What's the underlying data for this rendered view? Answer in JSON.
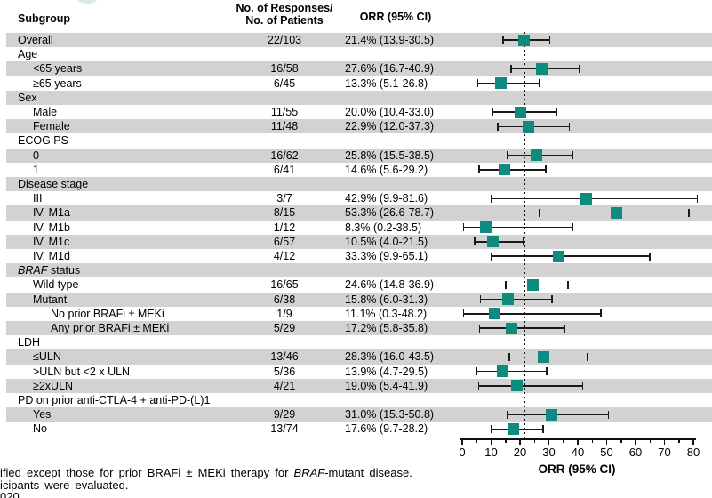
{
  "header": {
    "subgroup": "Subgroup",
    "responses_line1": "No. of Responses/",
    "responses_line2": "No. of Patients",
    "orr": "ORR (95% CI)"
  },
  "colors": {
    "marker": "#0f8a7f",
    "band": "#d2d2d2",
    "line": "#1a1a1a"
  },
  "chart_data": {
    "type": "scatter",
    "subtype": "forest-plot",
    "title": "",
    "xlabel": "ORR (95% CI)",
    "xlim": [
      0,
      80
    ],
    "x_major_ticks": [
      0,
      10,
      20,
      30,
      40,
      50,
      60,
      70,
      80
    ],
    "x_minor_step": 5,
    "reference_line_x": 21.4,
    "rows": [
      {
        "label": "Overall",
        "indent": 0,
        "shaded": true,
        "responses": "22/103",
        "orr": "21.4% (13.9-30.5)",
        "est": 21.4,
        "lo": 13.9,
        "hi": 30.5
      },
      {
        "label": "Age",
        "indent": 0,
        "shaded": false,
        "responses": "",
        "orr": ""
      },
      {
        "label": "<65 years",
        "indent": 1,
        "shaded": true,
        "responses": "16/58",
        "orr": "27.6% (16.7-40.9)",
        "est": 27.6,
        "lo": 16.7,
        "hi": 40.9
      },
      {
        "label": "≥65 years",
        "indent": 1,
        "shaded": false,
        "responses": "6/45",
        "orr": "13.3% (5.1-26.8)",
        "est": 13.3,
        "lo": 5.1,
        "hi": 26.8
      },
      {
        "label": "Sex",
        "indent": 0,
        "shaded": true,
        "responses": "",
        "orr": ""
      },
      {
        "label": "Male",
        "indent": 1,
        "shaded": false,
        "responses": "11/55",
        "orr": "20.0% (10.4-33.0)",
        "est": 20.0,
        "lo": 10.4,
        "hi": 33.0
      },
      {
        "label": "Female",
        "indent": 1,
        "shaded": true,
        "responses": "11/48",
        "orr": "22.9% (12.0-37.3)",
        "est": 22.9,
        "lo": 12.0,
        "hi": 37.3
      },
      {
        "label": "ECOG PS",
        "indent": 0,
        "shaded": false,
        "responses": "",
        "orr": ""
      },
      {
        "label": "0",
        "indent": 1,
        "shaded": true,
        "responses": "16/62",
        "orr": "25.8% (15.5-38.5)",
        "est": 25.8,
        "lo": 15.5,
        "hi": 38.5
      },
      {
        "label": "1",
        "indent": 1,
        "shaded": false,
        "responses": "6/41",
        "orr": "14.6% (5.6-29.2)",
        "est": 14.6,
        "lo": 5.6,
        "hi": 29.2
      },
      {
        "label": "Disease stage",
        "indent": 0,
        "shaded": true,
        "responses": "",
        "orr": ""
      },
      {
        "label": "III",
        "indent": 1,
        "shaded": false,
        "responses": "3/7",
        "orr": "42.9% (9.9-81.6)",
        "est": 42.9,
        "lo": 9.9,
        "hi": 81.6
      },
      {
        "label": "IV, M1a",
        "indent": 1,
        "shaded": true,
        "responses": "8/15",
        "orr": "53.3% (26.6-78.7)",
        "est": 53.3,
        "lo": 26.6,
        "hi": 78.7
      },
      {
        "label": "IV, M1b",
        "indent": 1,
        "shaded": false,
        "responses": "1/12",
        "orr": "8.3% (0.2-38.5)",
        "est": 8.3,
        "lo": 0.2,
        "hi": 38.5
      },
      {
        "label": "IV, M1c",
        "indent": 1,
        "shaded": true,
        "responses": "6/57",
        "orr": "10.5% (4.0-21.5)",
        "est": 10.5,
        "lo": 4.0,
        "hi": 21.5
      },
      {
        "label": "IV, M1d",
        "indent": 1,
        "shaded": false,
        "responses": "4/12",
        "orr": "33.3% (9.9-65.1)",
        "est": 33.3,
        "lo": 9.9,
        "hi": 65.1
      },
      {
        "label": "BRAF status",
        "label_parts": [
          {
            "text": "BRAF",
            "italic": true
          },
          {
            "text": " status",
            "italic": false
          }
        ],
        "indent": 0,
        "shaded": true,
        "responses": "",
        "orr": ""
      },
      {
        "label": "Wild type",
        "indent": 1,
        "shaded": false,
        "responses": "16/65",
        "orr": "24.6% (14.8-36.9)",
        "est": 24.6,
        "lo": 14.8,
        "hi": 36.9
      },
      {
        "label": "Mutant",
        "indent": 1,
        "shaded": true,
        "responses": "6/38",
        "orr": "15.8% (6.0-31.3)",
        "est": 15.8,
        "lo": 6.0,
        "hi": 31.3
      },
      {
        "label": "No prior BRAFi ± MEKi",
        "indent": 2,
        "shaded": false,
        "responses": "1/9",
        "orr": "11.1% (0.3-48.2)",
        "est": 11.1,
        "lo": 0.3,
        "hi": 48.2
      },
      {
        "label": "Any prior BRAFi ± MEKi",
        "indent": 2,
        "shaded": true,
        "responses": "5/29",
        "orr": "17.2% (5.8-35.8)",
        "est": 17.2,
        "lo": 5.8,
        "hi": 35.8
      },
      {
        "label": "LDH",
        "indent": 0,
        "shaded": false,
        "responses": "",
        "orr": ""
      },
      {
        "label": "≤ULN",
        "indent": 1,
        "shaded": true,
        "responses": "13/46",
        "orr": "28.3% (16.0-43.5)",
        "est": 28.3,
        "lo": 16.0,
        "hi": 43.5
      },
      {
        "label": ">ULN but <2 x ULN",
        "indent": 1,
        "shaded": false,
        "responses": "5/36",
        "orr": "13.9% (4.7-29.5)",
        "est": 13.9,
        "lo": 4.7,
        "hi": 29.5
      },
      {
        "label": "≥2xULN",
        "indent": 1,
        "shaded": true,
        "responses": "4/21",
        "orr": "19.0% (5.4-41.9)",
        "est": 19.0,
        "lo": 5.4,
        "hi": 41.9
      },
      {
        "label": "PD on prior anti-CTLA-4 + anti-PD-(L)1",
        "indent": 0,
        "shaded": false,
        "responses": "",
        "orr": ""
      },
      {
        "label": "Yes",
        "indent": 1,
        "shaded": true,
        "responses": "9/29",
        "orr": "31.0% (15.3-50.8)",
        "est": 31.0,
        "lo": 15.3,
        "hi": 50.8
      },
      {
        "label": "No",
        "indent": 1,
        "shaded": false,
        "responses": "13/74",
        "orr": "17.6% (9.7-28.2)",
        "est": 17.6,
        "lo": 9.7,
        "hi": 28.2
      }
    ]
  },
  "footnotes": [
    [
      {
        "text": "ified except those for prior BRAFi ± MEKi therapy for ",
        "italic": false
      },
      {
        "text": "BRAF",
        "italic": true
      },
      {
        "text": "-mutant disease.",
        "italic": false
      }
    ],
    [
      {
        "text": "icipants were evaluated.",
        "italic": false
      }
    ],
    [
      {
        "text": "020",
        "italic": false
      }
    ]
  ]
}
